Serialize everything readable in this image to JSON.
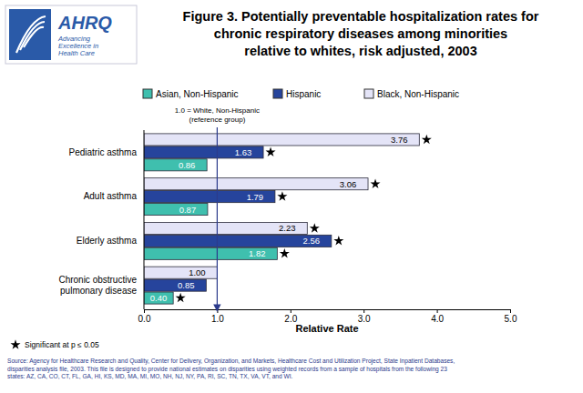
{
  "chart_data": {
    "type": "bar",
    "orientation": "horizontal",
    "title": "Figure 3. Potentially preventable hospitalization rates for\nchronic respiratory diseases among minorities\nrelative to whites, risk adjusted, 2003",
    "logo": {
      "name": "AHRQ",
      "tagline": "Advancing\nExcellence in\nHealth Care"
    },
    "categories": [
      "Pediatric asthma",
      "Adult asthma",
      "Elderly asthma",
      "Chronic obstructive pulmonary disease"
    ],
    "series": [
      {
        "name": "Asian, Non-Hispanic",
        "color": "#3fbfae",
        "values": [
          0.86,
          0.87,
          1.82,
          0.4
        ],
        "value_labels": [
          "0.86",
          "0.87",
          "1.82",
          "0.40"
        ],
        "significant": [
          false,
          false,
          true,
          true
        ]
      },
      {
        "name": "Hispanic",
        "color": "#26449c",
        "values": [
          1.63,
          1.79,
          2.56,
          0.85
        ],
        "value_labels": [
          "1.63",
          "1.79",
          "2.56",
          "0.85"
        ],
        "significant": [
          true,
          true,
          true,
          false
        ]
      },
      {
        "name": "Black, Non-Hispanic",
        "color": "#e4e4f7",
        "values": [
          3.76,
          3.06,
          2.23,
          1.0
        ],
        "value_labels": [
          "3.76",
          "3.06",
          "2.23",
          "1.00"
        ],
        "significant": [
          true,
          true,
          true,
          false
        ]
      }
    ],
    "xlabel": "Relative Rate",
    "xlim": [
      0,
      5
    ],
    "xticks": [
      {
        "value": 0,
        "label": "0.0"
      },
      {
        "value": 1,
        "label": "1.0"
      },
      {
        "value": 2,
        "label": "2.0"
      },
      {
        "value": 3,
        "label": "3.0"
      },
      {
        "value": 4,
        "label": "4.0"
      },
      {
        "value": 5,
        "label": "5.0"
      }
    ],
    "reference_line": {
      "value": 1,
      "label": "1.0 = White, Non-Hispanic\n(reference group)"
    },
    "footnote": "Significant at p ≤ 0.05",
    "source": "Source: Agency for Healthcare Research and Quality, Center for Delivery, Organization, and Markets, Healthcare Cost and Utilization Project, State Inpatient Databases,\ndisparities analysis file, 2003. This file is designed to provide national estimates on disparities using weighted records from a sample of hospitals from the following 23\nstates: AZ, CA, CO, CT, FL, GA, HI, KS, MD, MA, MI, MO, NH, NJ, NY, PA, RI, SC, TN, TX, VA, VT, and WI.",
    "legend": "top",
    "data_labels": true,
    "grid": false
  }
}
